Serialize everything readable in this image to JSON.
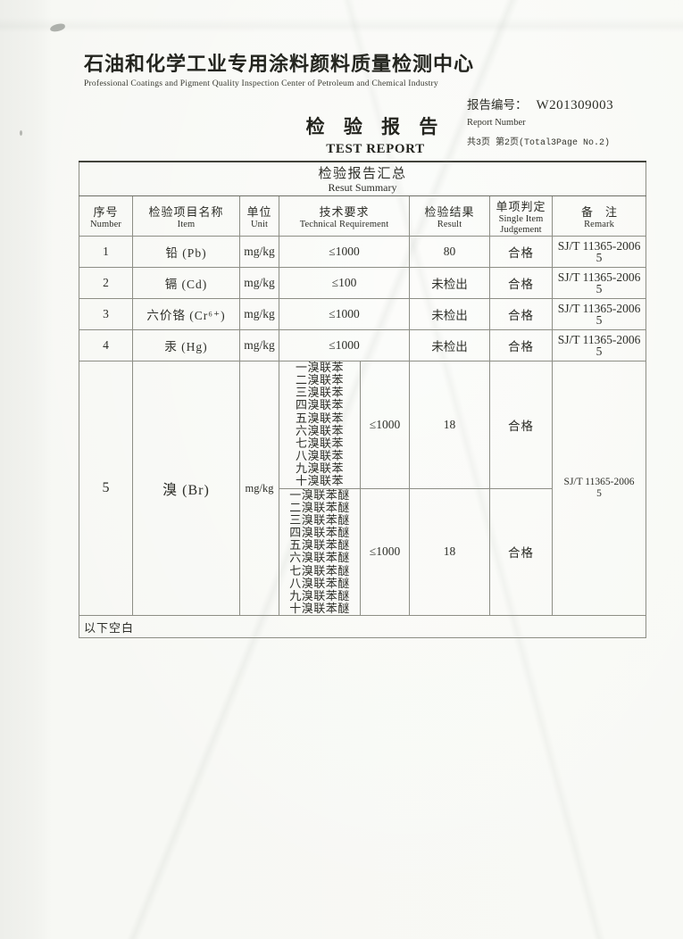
{
  "header": {
    "org_zh": "石油和化学工业专用涂料颜料质量检测中心",
    "org_en": "Professional Coatings and Pigment Quality Inspection Center of Petroleum and Chemical Industry",
    "report_no_label_zh": "报告编号：",
    "report_no_value": "W201309003",
    "report_no_label_en": "Report Number",
    "page_info": "共3页 第2页(Total3Page No.2)",
    "title_zh": "检 验 报 告",
    "title_en": "TEST REPORT"
  },
  "table": {
    "title_zh": "检验报告汇总",
    "title_en": "Resut Summary",
    "headers": [
      {
        "zh": "序号",
        "en": "Number"
      },
      {
        "zh": "检验项目名称",
        "en": "Item"
      },
      {
        "zh": "单位",
        "en": "Unit"
      },
      {
        "zh": "技术要求",
        "en": "Technical Requirement"
      },
      {
        "zh": "检验结果",
        "en": "Result"
      },
      {
        "zh": "单项判定",
        "en": "Single Item Judgement"
      },
      {
        "zh": "备注",
        "en": "Remark"
      }
    ],
    "rows": [
      {
        "no": "1",
        "item": "铅 (Pb)",
        "unit": "mg/kg",
        "requirement": "≤1000",
        "result": "80",
        "judgement": "合格",
        "remark": "SJ/T 11365-2006",
        "remark2": "5"
      },
      {
        "no": "2",
        "item": "镉 (Cd)",
        "unit": "mg/kg",
        "requirement": "≤100",
        "result": "未检出",
        "judgement": "合格",
        "remark": "SJ/T 11365-2006",
        "remark2": "5"
      },
      {
        "no": "3",
        "item": "六价铬 (Cr⁶⁺)",
        "unit": "mg/kg",
        "requirement": "≤1000",
        "result": "未检出",
        "judgement": "合格",
        "remark": "SJ/T 11365-2006",
        "remark2": "5"
      },
      {
        "no": "4",
        "item": "汞 (Hg)",
        "unit": "mg/kg",
        "requirement": "≤1000",
        "result": "未检出",
        "judgement": "合格",
        "remark": "SJ/T 11365-2006",
        "remark2": "5"
      }
    ],
    "row5": {
      "no": "5",
      "item": "溴 (Br)",
      "unit": "mg/kg",
      "groups": [
        {
          "substances": [
            "一溴联苯",
            "二溴联苯",
            "三溴联苯",
            "四溴联苯",
            "五溴联苯",
            "六溴联苯",
            "七溴联苯",
            "八溴联苯",
            "九溴联苯",
            "十溴联苯"
          ],
          "requirement": "≤1000",
          "result": "18",
          "judgement": "合格"
        },
        {
          "substances": [
            "一溴联苯醚",
            "二溴联苯醚",
            "三溴联苯醚",
            "四溴联苯醚",
            "五溴联苯醚",
            "六溴联苯醚",
            "七溴联苯醚",
            "八溴联苯醚",
            "九溴联苯醚",
            "十溴联苯醚"
          ],
          "requirement": "≤1000",
          "result": "18",
          "judgement": "合格"
        }
      ],
      "remark": "SJ/T 11365-2006",
      "remark2": "5"
    },
    "footer": "以下空白"
  }
}
